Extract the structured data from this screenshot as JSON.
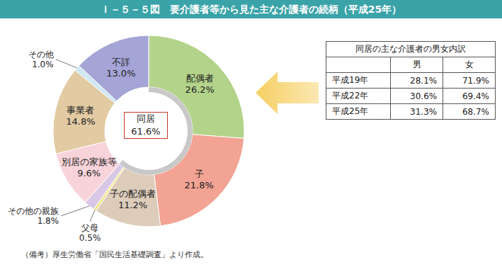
{
  "chart_data": {
    "type": "pie",
    "title": "Ｉ－５－５図　要介護者等から見た主な介護者の続柄（平成25年）",
    "categories": [
      "配偶者",
      "子",
      "子の配偶者",
      "父母",
      "その他の親族",
      "別居の家族等",
      "事業者",
      "その他",
      "不詳"
    ],
    "values": [
      26.2,
      21.8,
      11.2,
      0.5,
      1.8,
      9.6,
      14.8,
      1.0,
      13.0
    ],
    "value_labels": [
      "26.2%",
      "21.8%",
      "11.2%",
      "0.5%",
      "1.8%",
      "9.6%",
      "14.8%",
      "1.0%",
      "13.0%"
    ],
    "colors": [
      "#b3d38a",
      "#f2a393",
      "#ddccb9",
      "#f3e58c",
      "#d8c8e6",
      "#f8d4da",
      "#e2caa2",
      "#cfe7f3",
      "#a4a4d6"
    ],
    "data_labels": true,
    "center": {
      "label": "同居",
      "value": 61.6,
      "value_label": "61.6%"
    },
    "table": {
      "title": "同居の主な介護者の男女内訳",
      "columns": [
        "男",
        "女"
      ],
      "rows": [
        [
          "平成19年",
          "28.1%",
          "71.9%"
        ],
        [
          "平成22年",
          "30.6%",
          "69.4%"
        ],
        [
          "平成25年",
          "31.3%",
          "68.7%"
        ]
      ]
    },
    "note": "（備考）厚生労働省「国民生活基礎調査」より作成。"
  }
}
